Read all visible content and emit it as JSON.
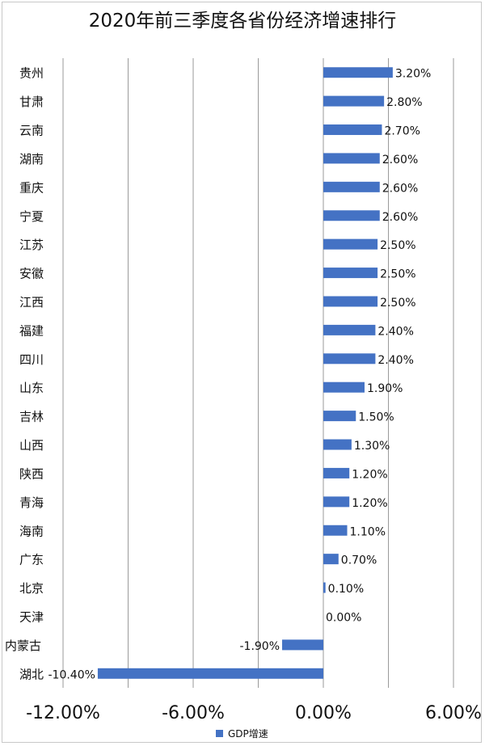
{
  "chart_data": {
    "type": "bar",
    "orientation": "horizontal",
    "title": "2020年前三季度各省份经济增速排行",
    "categories": [
      "贵州",
      "甘肃",
      "云南",
      "湖南",
      "重庆",
      "宁夏",
      "江苏",
      "安徽",
      "江西",
      "福建",
      "四川",
      "山东",
      "吉林",
      "山西",
      "陕西",
      "青海",
      "海南",
      "广东",
      "北京",
      "天津",
      "内蒙古",
      "湖北"
    ],
    "series": [
      {
        "name": "GDP增速",
        "values": [
          3.2,
          2.8,
          2.7,
          2.6,
          2.6,
          2.6,
          2.5,
          2.5,
          2.5,
          2.4,
          2.4,
          1.9,
          1.5,
          1.3,
          1.2,
          1.2,
          1.1,
          0.7,
          0.1,
          0.0,
          -1.9,
          -10.4
        ],
        "labels": [
          "3.20%",
          "2.80%",
          "2.70%",
          "2.60%",
          "2.60%",
          "2.60%",
          "2.50%",
          "2.50%",
          "2.50%",
          "2.40%",
          "2.40%",
          "1.90%",
          "1.50%",
          "1.30%",
          "1.20%",
          "1.20%",
          "1.10%",
          "0.70%",
          "0.10%",
          "0.00%",
          "-1.90%",
          "-10.40%"
        ],
        "color": "#4472C4"
      }
    ],
    "xlim": [
      -12,
      6
    ],
    "xticks": [
      -12,
      -9,
      -6,
      -3,
      0,
      3,
      6
    ],
    "xtick_labels": [
      "-12.00%",
      "",
      "-6.00%",
      "",
      "0.00%",
      "",
      "6.00%"
    ],
    "grid": true,
    "legend_position": "bottom"
  }
}
